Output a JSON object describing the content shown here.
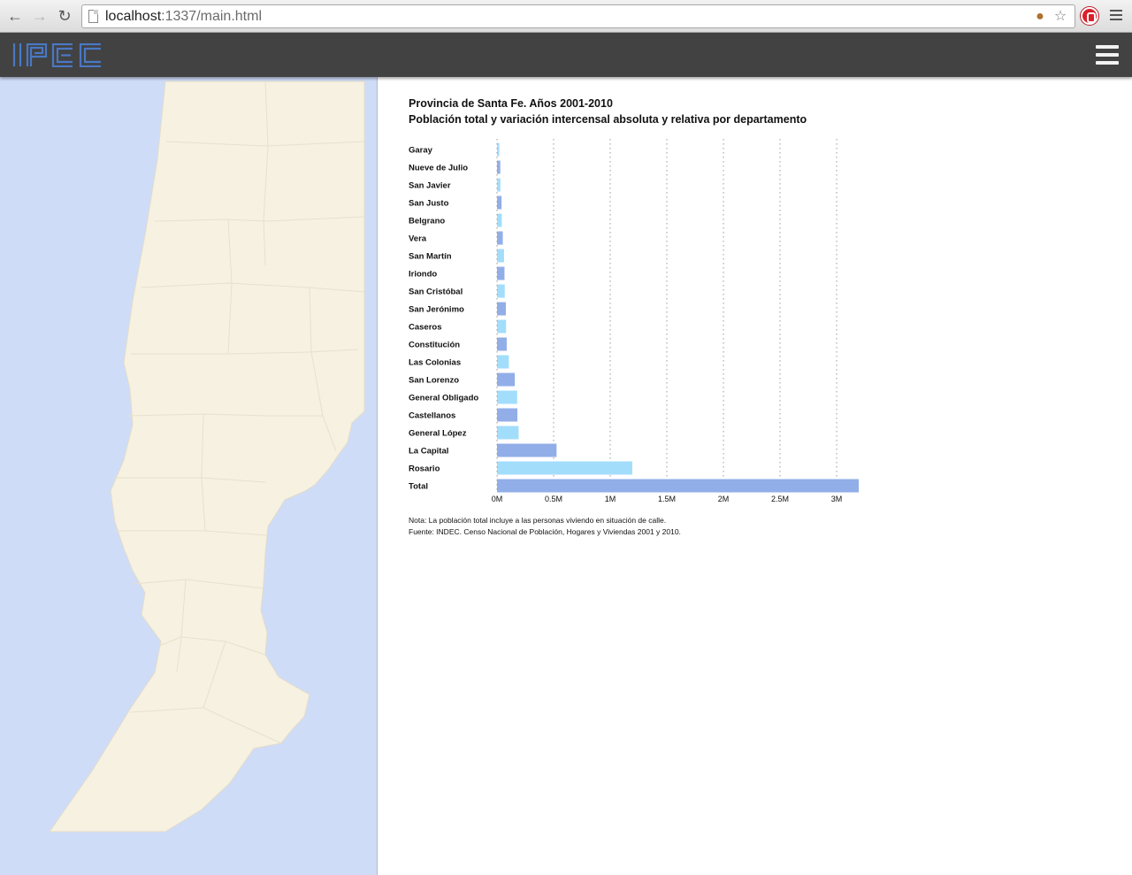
{
  "browser": {
    "url_host": "localhost",
    "url_path": ":1337/main.html"
  },
  "app": {
    "logo_text": "IPEC"
  },
  "colors": {
    "header_bg": "#424242",
    "logo": "#4a78c4",
    "map_water": "#cedcf7",
    "map_land": "#f7f1e1",
    "bar_dark": "#92aee8",
    "bar_light": "#a3ddfc"
  },
  "chart": {
    "title": "Provincia de Santa Fe. Años 2001-2010",
    "subtitle": "Población total y variación intercensal absoluta y relativa por departamento",
    "note": "Nota: La población total incluye a las personas viviendo en situación de calle.",
    "source": "Fuente: INDEC. Censo Nacional de Población, Hogares y Viviendas 2001 y 2010."
  },
  "chart_data": {
    "type": "bar",
    "orientation": "horizontal",
    "title": "Provincia de Santa Fe. Años 2001-2010",
    "subtitle": "Población total y variación intercensal absoluta y relativa por departamento",
    "categories": [
      "Garay",
      "Nueve de Julio",
      "San Javier",
      "San Justo",
      "Belgrano",
      "Vera",
      "San Martín",
      "Iriondo",
      "San Cristóbal",
      "San Jerónimo",
      "Caseros",
      "Constitución",
      "Las Colonias",
      "San Lorenzo",
      "General Obligado",
      "Castellanos",
      "General López",
      "La Capital",
      "Rosario",
      "Total"
    ],
    "values": [
      20000,
      29000,
      30000,
      40000,
      42000,
      51000,
      62000,
      66000,
      68000,
      78000,
      80000,
      86000,
      104000,
      157000,
      178000,
      180000,
      191000,
      526000,
      1195000,
      3195000
    ],
    "x_ticks": [
      0,
      500000,
      1000000,
      1500000,
      2000000,
      2500000,
      3000000
    ],
    "x_tick_labels": [
      "0M",
      "0.5M",
      "1M",
      "1.5M",
      "2M",
      "2.5M",
      "3M"
    ],
    "xlim": [
      0,
      3195000
    ],
    "grid": "vertical dotted",
    "bar_colors_alternate": [
      "#a3ddfc",
      "#92aee8"
    ]
  }
}
